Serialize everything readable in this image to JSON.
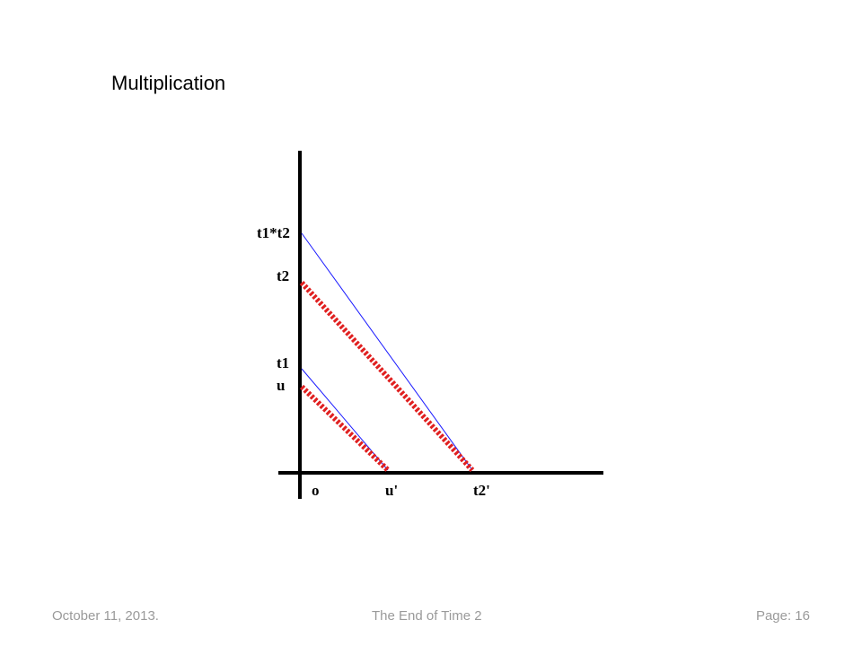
{
  "slide": {
    "title": "Multiplication"
  },
  "diagram": {
    "y_labels": {
      "product": "t1*t2",
      "t2": "t2",
      "t1": "t1",
      "u": "u"
    },
    "x_labels": {
      "origin": "o",
      "u_prime": "u'",
      "t2_prime": "t2'"
    },
    "colors": {
      "axis": "#000000",
      "thin_line": "#1a1aff",
      "thick_line": "#e02020"
    }
  },
  "footer": {
    "date": "October 11, 2013.",
    "center": "The End of Time 2",
    "page": "Page: 16"
  }
}
